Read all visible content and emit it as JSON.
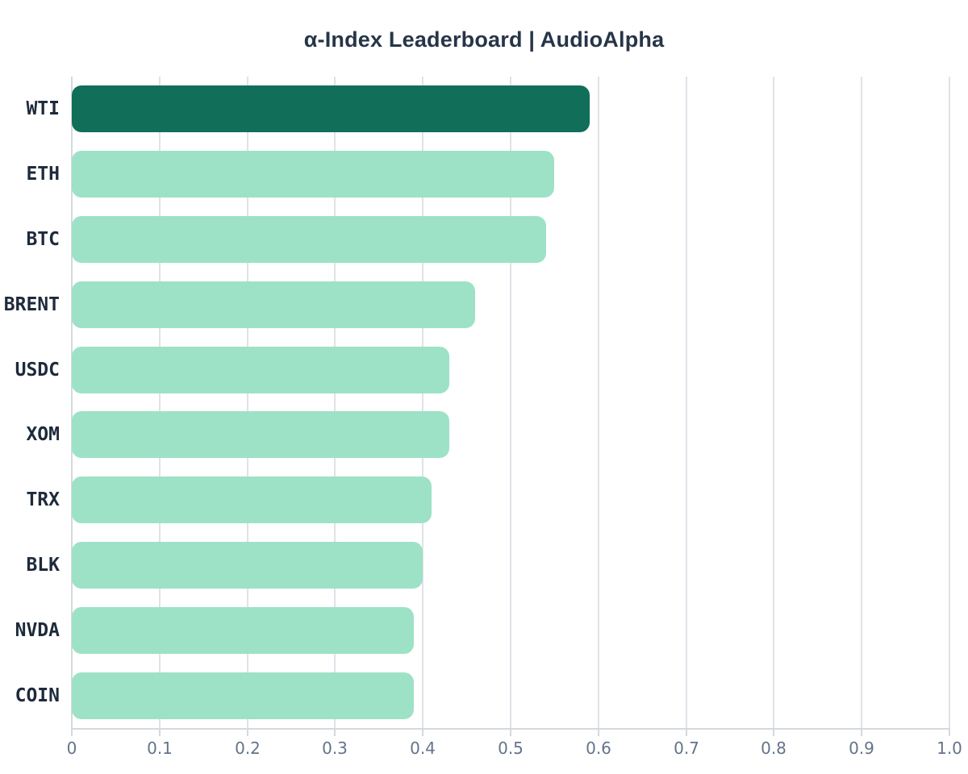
{
  "chart_data": {
    "type": "bar",
    "orientation": "horizontal",
    "title": "α-Index Leaderboard | AudioAlpha",
    "categories": [
      "WTI",
      "ETH",
      "BTC",
      "BRENT",
      "USDC",
      "XOM",
      "TRX",
      "BLK",
      "NVDA",
      "COIN"
    ],
    "values": [
      0.59,
      0.55,
      0.54,
      0.46,
      0.43,
      0.43,
      0.41,
      0.4,
      0.39,
      0.39
    ],
    "xlabel": "",
    "ylabel": "",
    "xlim": [
      0,
      1.0
    ],
    "xticks": [
      0,
      0.1,
      0.2,
      0.3,
      0.4,
      0.5,
      0.6,
      0.7,
      0.8,
      0.9,
      1.0
    ],
    "xtick_labels": [
      "0",
      "0.1",
      "0.2",
      "0.3",
      "0.4",
      "0.5",
      "0.6",
      "0.7",
      "0.8",
      "0.9",
      "1.0"
    ],
    "grid": "vertical",
    "legend": "none",
    "highlight_index": 0,
    "colors": {
      "highlight_bar": "#106E59",
      "base_bar": "#9DE2C6",
      "title_text": "#273548",
      "category_text": "#1E2A3C",
      "tick_text": "#64748B",
      "gridline": "#DFE3E8",
      "axis_spine": "#D4D9DE",
      "background": "#FFFFFF"
    }
  }
}
